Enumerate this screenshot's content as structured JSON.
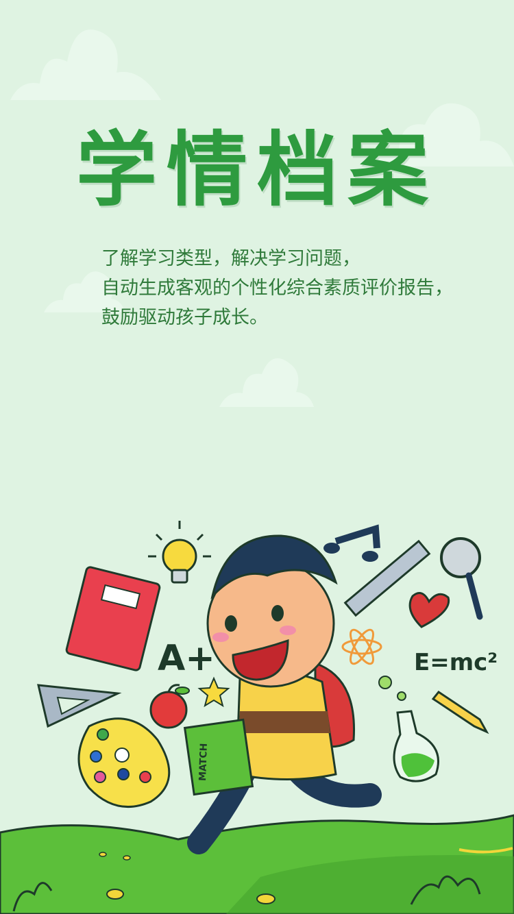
{
  "page": {
    "title": "学情档案"
  },
  "description": {
    "lines": [
      "了解学习类型，解决学习问题，",
      "自动生成客观的个性化综合素质评价报告，",
      "鼓励驱动孩子成长。"
    ]
  },
  "illustration": {
    "notebook_label": "MATCH",
    "formula": "E=mc²",
    "grade": "A+"
  },
  "colors": {
    "background": "#dff3e2",
    "title": "#2e9b3f",
    "text": "#2f7a3a",
    "grass": "#5cbf3a"
  }
}
